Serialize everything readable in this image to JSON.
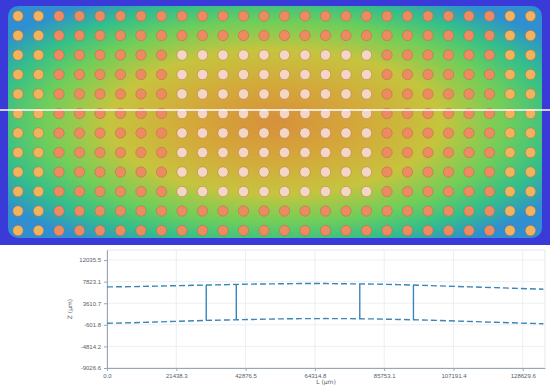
{
  "chart_data": {
    "type": "line",
    "x_label": "L (µm)",
    "y_label": "Z (µm)",
    "xlim": [
      0,
      135500
    ],
    "ylim": [
      -9026.6,
      14000
    ],
    "xticks": [
      {
        "value": 0,
        "label": "0.0"
      },
      21438.3,
      42876.5,
      64314.8,
      85753.1,
      107191.4,
      128629.6
    ],
    "yticks": [
      -9026.6,
      -4814.2,
      -601.8,
      3610.7,
      7823.1,
      12035.5
    ],
    "grid": true,
    "series": [
      {
        "color": "#3a86b8",
        "line_style": "dashed",
        "x": [
          0,
          7500,
          15000,
          22500,
          30000,
          37500,
          45000,
          52500,
          60000,
          67500,
          75000,
          82500,
          90000,
          97500,
          105000,
          112500,
          120000,
          127500,
          135000
        ],
        "values": [
          6800,
          6850,
          6950,
          7050,
          7150,
          7250,
          7350,
          7400,
          7450,
          7450,
          7400,
          7350,
          7250,
          7100,
          6950,
          6800,
          6650,
          6500,
          6350
        ]
      },
      {
        "color": "#3a86b8",
        "line_style": "dashed",
        "x": [
          0,
          7500,
          15000,
          22500,
          30000,
          37500,
          45000,
          52500,
          60000,
          67500,
          75000,
          82500,
          90000,
          97500,
          105000,
          112500,
          120000,
          127500,
          135000
        ],
        "values": [
          -300,
          -200,
          -50,
          100,
          250,
          350,
          450,
          550,
          600,
          620,
          600,
          550,
          450,
          350,
          200,
          50,
          -100,
          -250,
          -400
        ]
      },
      {
        "color": "#3a86b8",
        "line_style": "solid",
        "x": [
          30700,
          30700
        ],
        "values": [
          260,
          7150
        ]
      },
      {
        "color": "#3a86b8",
        "line_style": "solid",
        "x": [
          40000,
          40000
        ],
        "values": [
          340,
          7270
        ]
      },
      {
        "color": "#3a86b8",
        "line_style": "solid",
        "x": [
          78200,
          78200
        ],
        "values": [
          590,
          7400
        ]
      },
      {
        "color": "#3a86b8",
        "line_style": "solid",
        "x": [
          94800,
          94800
        ],
        "values": [
          390,
          7150
        ]
      }
    ]
  }
}
